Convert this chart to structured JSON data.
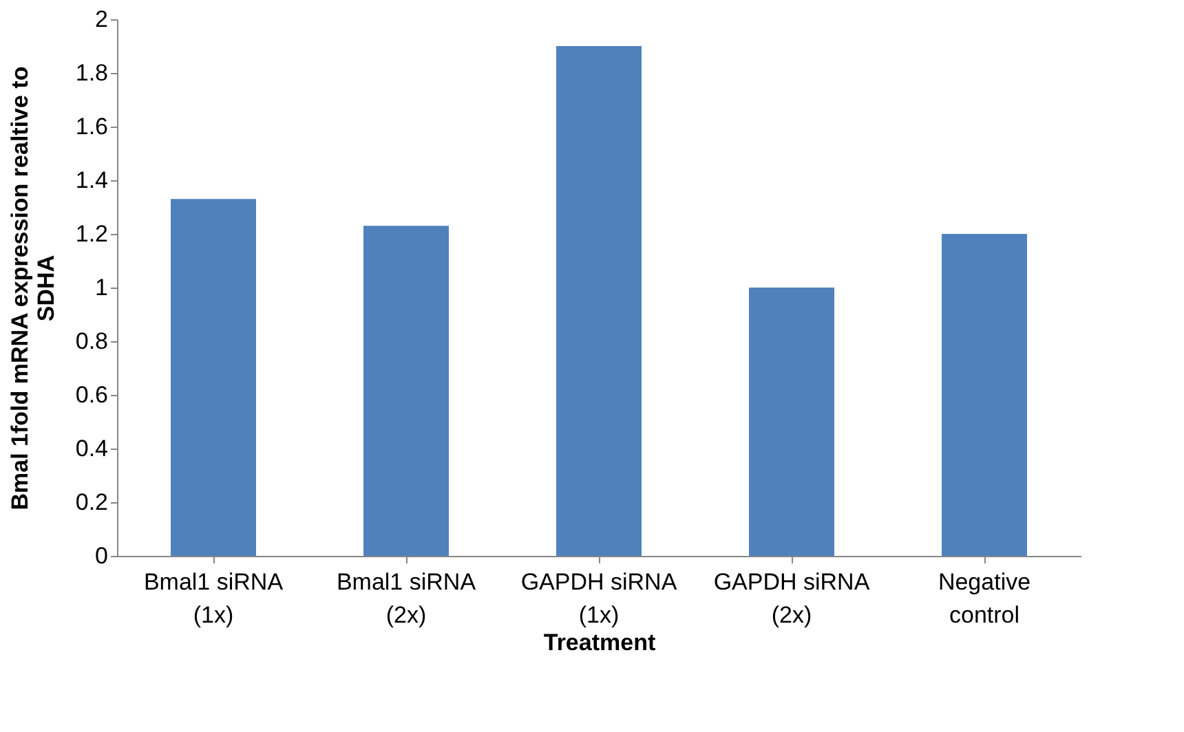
{
  "chart_data": {
    "type": "bar",
    "xlabel": "Treatment",
    "ylabel": "Bmal 1fold  mRNA expression realtive to SDHA",
    "categories": [
      "Bmal1 siRNA (1x)",
      "Bmal1 siRNA (2x)",
      "GAPDH siRNA (1x)",
      "GAPDH siRNA (2x)",
      "Negative control"
    ],
    "values": [
      1.33,
      1.23,
      1.9,
      1.0,
      1.2
    ],
    "color": "#4f81bd",
    "ylim": [
      0,
      2
    ],
    "yticks": [
      0,
      0.2,
      0.4,
      0.6,
      0.8,
      1,
      1.2,
      1.4,
      1.6,
      1.8,
      2
    ],
    "grid": false
  }
}
